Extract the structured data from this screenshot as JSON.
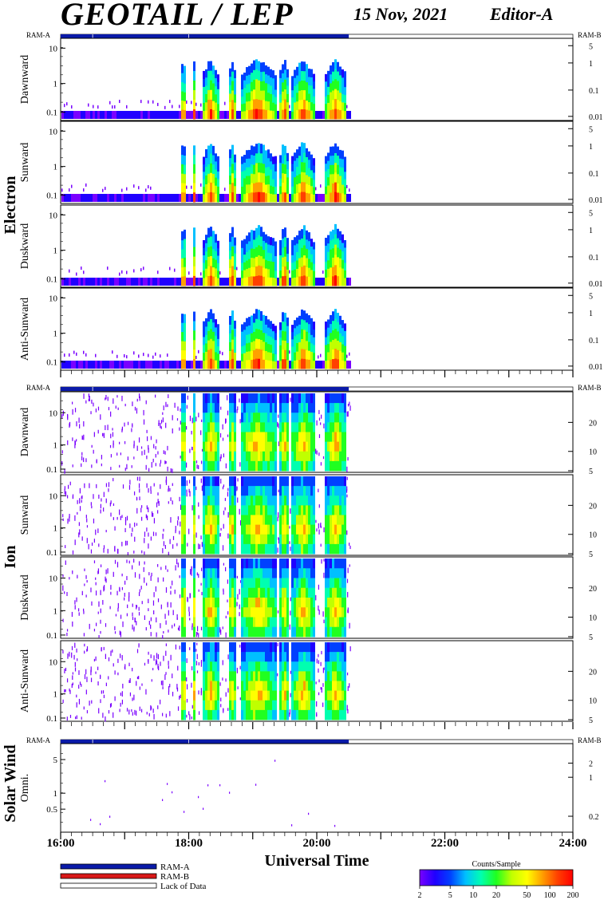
{
  "header": {
    "title": "GEOTAIL / LEP",
    "date": "15 Nov, 2021",
    "editor": "Editor-A"
  },
  "colors": {
    "ram_a": "#0a1aa8",
    "ram_b": "#d81818",
    "lack_of_data": "#ffffff",
    "frame": "#000000"
  },
  "chart_data": {
    "type": "heatmap",
    "xlabel": "Universal Time",
    "x_ticks": [
      "16:00",
      "18:00",
      "20:00",
      "22:00",
      "24:00"
    ],
    "x_range_hours": [
      16,
      24
    ],
    "data_end_hours": 20.5,
    "ram_labels": {
      "left": "RAM-A",
      "right": "RAM-B"
    },
    "groups": [
      {
        "name": "Electron",
        "left_ticks": [
          "10",
          "1",
          "0.1"
        ],
        "right_ticks": [
          "5",
          "1",
          "0.1",
          "0.01"
        ],
        "panels": [
          "Dawnward",
          "Sunward",
          "Duskward",
          "Anti-Sunward"
        ]
      },
      {
        "name": "Ion",
        "left_ticks": [
          "10",
          "1",
          "0.1"
        ],
        "right_ticks": [
          "20",
          "10",
          "5"
        ],
        "panels": [
          "Dawnward",
          "Sunward",
          "Duskward",
          "Anti-Sunward"
        ]
      },
      {
        "name": "Solar Wind",
        "left_ticks": [
          "5",
          "1",
          "0.5"
        ],
        "right_ticks": [
          "2",
          "1",
          "0.2"
        ],
        "panels": [
          "Omni."
        ]
      }
    ],
    "ram_status": [
      {
        "from": "16:00",
        "to": "20:30",
        "state": "RAM-A"
      },
      {
        "from": "20:30",
        "to": "24:00",
        "state": "Lack of Data"
      }
    ],
    "colorbar": {
      "label": "Counts/Sample",
      "ticks": [
        "2",
        "5",
        "10",
        "20",
        "50",
        "100",
        "200"
      ],
      "colors": [
        "#7a00ff",
        "#2000ff",
        "#0040ff",
        "#00c0ff",
        "#00ffb0",
        "#20ff20",
        "#c0ff00",
        "#ffff00",
        "#ffa000",
        "#ff4000",
        "#ff0000"
      ]
    },
    "legend": [
      {
        "label": "RAM-A",
        "color": "#0a1aa8"
      },
      {
        "label": "RAM-B",
        "color": "#d81818"
      },
      {
        "label": "Lack of Data",
        "color": "#ffffff"
      }
    ]
  }
}
